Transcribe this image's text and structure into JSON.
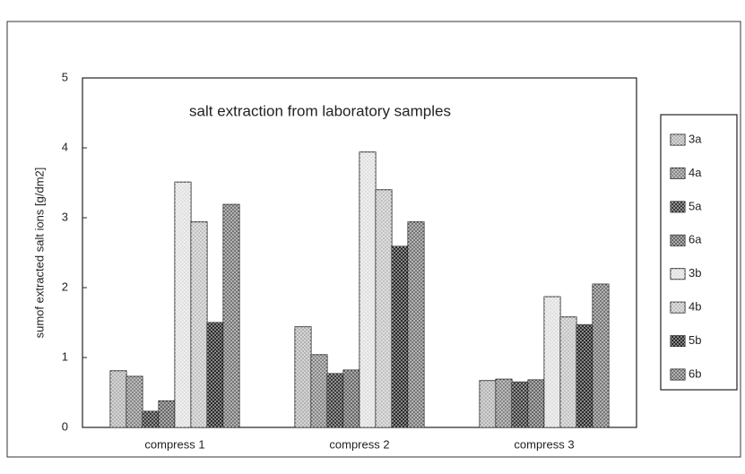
{
  "chart_data": {
    "type": "bar",
    "title": "salt extraction from laboratory samples",
    "y_label": "sumof extracted salt ions [g/dm2]",
    "categories": [
      "compress 1",
      "compress 2",
      "compress 3"
    ],
    "series": [
      {
        "name": "3a",
        "color": "#aaaaaa",
        "values": [
          0.81,
          1.44,
          0.67
        ]
      },
      {
        "name": "4a",
        "color": "#777777",
        "values": [
          0.73,
          1.04,
          0.69
        ]
      },
      {
        "name": "5a",
        "color": "#222222",
        "values": [
          0.23,
          0.77,
          0.65
        ]
      },
      {
        "name": "6a",
        "color": "#555555",
        "values": [
          0.38,
          0.82,
          0.68
        ]
      },
      {
        "name": "3b",
        "color": "#dddddd",
        "values": [
          3.51,
          3.94,
          1.87
        ]
      },
      {
        "name": "4b",
        "color": "#bbbbbb",
        "values": [
          2.94,
          3.4,
          1.58
        ]
      },
      {
        "name": "5b",
        "color": "#111111",
        "values": [
          1.5,
          2.59,
          1.47
        ]
      },
      {
        "name": "6b",
        "color": "#666666",
        "values": [
          3.19,
          2.94,
          2.05
        ]
      }
    ],
    "ylim": [
      0,
      5
    ],
    "yticks": [
      0,
      1,
      2,
      3,
      4,
      5
    ],
    "legend": "right"
  }
}
